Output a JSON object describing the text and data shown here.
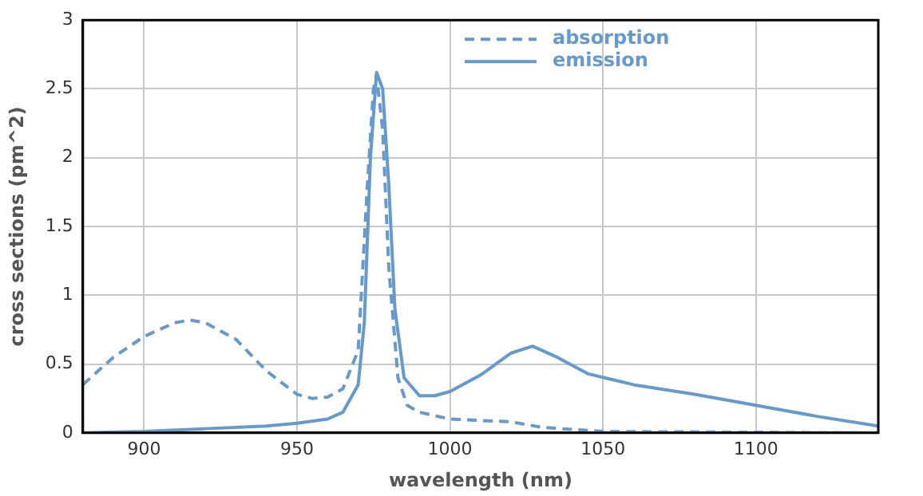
{
  "chart_data": {
    "type": "line",
    "xlabel": "wavelength (nm)",
    "ylabel": "cross sections (pm^2)",
    "xlim": [
      880,
      1140
    ],
    "xticks": [
      900,
      950,
      1000,
      1050,
      1100
    ],
    "ylim": [
      0,
      3
    ],
    "yticks": [
      0,
      0.5,
      1,
      1.5,
      2,
      2.5,
      3
    ],
    "grid": true,
    "legend": "top",
    "marker": "none",
    "series": [
      {
        "name": "absorption",
        "color": "#6699cc",
        "line_style": "dashed",
        "x": [
          880,
          890,
          900,
          910,
          915,
          920,
          930,
          940,
          950,
          955,
          960,
          965,
          970,
          973,
          975,
          976,
          978,
          980,
          983,
          986,
          990,
          1000,
          1020,
          1030,
          1050,
          1140
        ],
        "values": [
          0.35,
          0.55,
          0.7,
          0.8,
          0.82,
          0.8,
          0.68,
          0.45,
          0.28,
          0.25,
          0.26,
          0.32,
          0.6,
          1.8,
          2.5,
          2.6,
          2.2,
          1.2,
          0.4,
          0.2,
          0.15,
          0.1,
          0.08,
          0.04,
          0.01,
          0
        ]
      },
      {
        "name": "emission",
        "color": "#6699cc",
        "line_style": "solid",
        "x": [
          880,
          900,
          920,
          940,
          950,
          960,
          965,
          970,
          972,
          974,
          976,
          978,
          980,
          982,
          985,
          990,
          995,
          1000,
          1010,
          1020,
          1027,
          1035,
          1045,
          1060,
          1080,
          1100,
          1120,
          1140
        ],
        "values": [
          0,
          0.01,
          0.03,
          0.05,
          0.07,
          0.1,
          0.15,
          0.35,
          0.8,
          2,
          2.62,
          2.5,
          1.8,
          0.9,
          0.4,
          0.27,
          0.27,
          0.3,
          0.42,
          0.58,
          0.63,
          0.55,
          0.43,
          0.35,
          0.28,
          0.2,
          0.12,
          0.05
        ]
      }
    ]
  }
}
